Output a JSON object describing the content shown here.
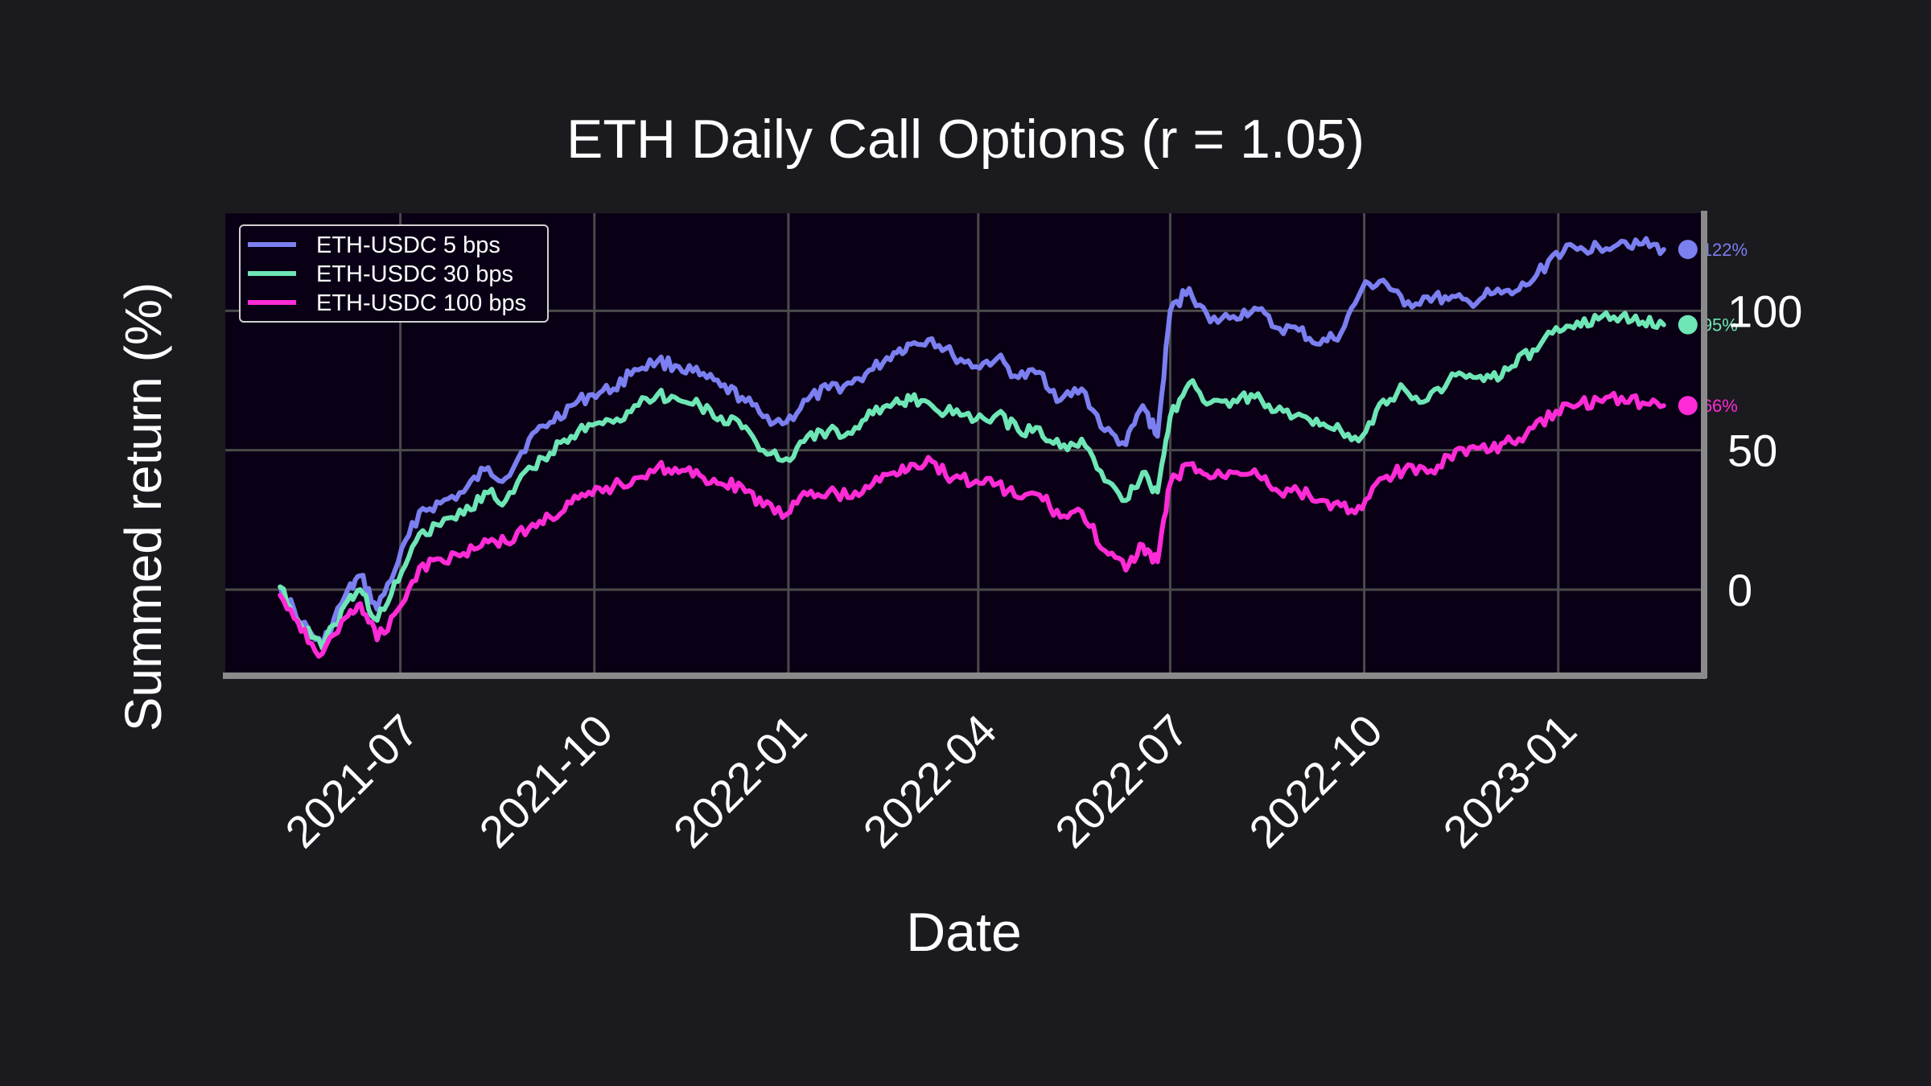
{
  "chart_data": {
    "type": "line",
    "title": "ETH Daily Call Options (r = 1.05)",
    "xlabel": "Date",
    "ylabel": "Summed return (%)",
    "x_tick_labels": [
      "2021-07",
      "2021-10",
      "2022-01",
      "2022-04",
      "2022-07",
      "2022-10",
      "2023-01"
    ],
    "y_ticks": [
      0,
      50,
      100
    ],
    "y_tick_labels": [
      "0",
      "50",
      "100"
    ],
    "y_axis_side": "right",
    "xlim": [
      "2021-04-09",
      "2023-03-10"
    ],
    "ylim": [
      -30,
      135
    ],
    "grid": true,
    "legend_position": "top-left",
    "colors": {
      "background": "#1b1a1f",
      "plot_background": "#0a0015",
      "grid": "#4a4a4a",
      "axis": "#8a8a8a",
      "text": "#ffffff"
    },
    "series": [
      {
        "name": "ETH-USDC 5 bps",
        "color": "#7b7ff0",
        "end_label": "122%",
        "x": [
          "2021-05-05",
          "2021-05-15",
          "2021-05-25",
          "2021-06-05",
          "2021-06-12",
          "2021-06-20",
          "2021-06-30",
          "2021-07-10",
          "2021-07-20",
          "2021-07-31",
          "2021-08-10",
          "2021-08-20",
          "2021-08-31",
          "2021-09-10",
          "2021-09-20",
          "2021-09-30",
          "2021-10-10",
          "2021-10-20",
          "2021-10-31",
          "2021-11-10",
          "2021-11-20",
          "2021-11-30",
          "2021-12-10",
          "2021-12-20",
          "2021-12-31",
          "2022-01-10",
          "2022-01-20",
          "2022-01-31",
          "2022-02-10",
          "2022-02-20",
          "2022-02-28",
          "2022-03-10",
          "2022-03-20",
          "2022-03-31",
          "2022-04-10",
          "2022-04-20",
          "2022-04-30",
          "2022-05-10",
          "2022-05-20",
          "2022-05-31",
          "2022-06-10",
          "2022-06-18",
          "2022-06-25",
          "2022-07-01",
          "2022-07-10",
          "2022-07-20",
          "2022-07-31",
          "2022-08-10",
          "2022-08-20",
          "2022-08-31",
          "2022-09-10",
          "2022-09-20",
          "2022-09-30",
          "2022-10-10",
          "2022-10-20",
          "2022-10-31",
          "2022-11-10",
          "2022-11-20",
          "2022-11-30",
          "2022-12-10",
          "2022-12-20",
          "2022-12-31",
          "2023-01-10",
          "2023-01-20",
          "2023-01-31",
          "2023-02-10",
          "2023-02-20"
        ],
        "y": [
          1,
          -12,
          -20,
          -2,
          5,
          -7,
          10,
          28,
          31,
          35,
          43,
          40,
          54,
          60,
          66,
          70,
          72,
          79,
          82,
          80,
          77,
          73,
          69,
          62,
          60,
          68,
          72,
          74,
          79,
          85,
          88,
          90,
          84,
          80,
          83,
          76,
          78,
          68,
          72,
          57,
          52,
          66,
          55,
          100,
          108,
          96,
          98,
          101,
          94,
          93,
          88,
          92,
          108,
          111,
          102,
          105,
          104,
          103,
          106,
          106,
          111,
          121,
          122,
          123,
          125,
          124,
          122
        ]
      },
      {
        "name": "ETH-USDC 30 bps",
        "color": "#6ee6b6",
        "end_label": "95%",
        "x": [
          "2021-05-05",
          "2021-05-15",
          "2021-05-25",
          "2021-06-05",
          "2021-06-12",
          "2021-06-20",
          "2021-06-30",
          "2021-07-10",
          "2021-07-20",
          "2021-07-31",
          "2021-08-10",
          "2021-08-20",
          "2021-08-31",
          "2021-09-10",
          "2021-09-20",
          "2021-09-30",
          "2021-10-10",
          "2021-10-20",
          "2021-10-31",
          "2021-11-10",
          "2021-11-20",
          "2021-11-30",
          "2021-12-10",
          "2021-12-20",
          "2021-12-31",
          "2022-01-10",
          "2022-01-20",
          "2022-01-31",
          "2022-02-10",
          "2022-02-20",
          "2022-02-28",
          "2022-03-10",
          "2022-03-20",
          "2022-03-31",
          "2022-04-10",
          "2022-04-20",
          "2022-04-30",
          "2022-05-10",
          "2022-05-20",
          "2022-05-31",
          "2022-06-10",
          "2022-06-18",
          "2022-06-25",
          "2022-07-01",
          "2022-07-10",
          "2022-07-20",
          "2022-07-31",
          "2022-08-10",
          "2022-08-20",
          "2022-08-31",
          "2022-09-10",
          "2022-09-20",
          "2022-09-30",
          "2022-10-10",
          "2022-10-20",
          "2022-10-31",
          "2022-11-10",
          "2022-11-20",
          "2022-11-30",
          "2022-12-10",
          "2022-12-20",
          "2022-12-31",
          "2023-01-10",
          "2023-01-20",
          "2023-01-31",
          "2023-02-10",
          "2023-02-20"
        ],
        "y": [
          1,
          -13,
          -21,
          -5,
          0,
          -11,
          3,
          20,
          23,
          27,
          35,
          32,
          44,
          49,
          55,
          59,
          60,
          66,
          70,
          68,
          66,
          62,
          58,
          50,
          47,
          55,
          57,
          56,
          63,
          67,
          68,
          66,
          63,
          61,
          63,
          57,
          58,
          51,
          54,
          39,
          32,
          42,
          35,
          62,
          74,
          67,
          68,
          69,
          64,
          63,
          59,
          57,
          55,
          68,
          72,
          68,
          75,
          77,
          76,
          80,
          86,
          94,
          96,
          97,
          98,
          96,
          95
        ]
      },
      {
        "name": "ETH-USDC 100 bps",
        "color": "#ff2bd6",
        "end_label": "66%",
        "x": [
          "2021-05-05",
          "2021-05-15",
          "2021-05-25",
          "2021-06-05",
          "2021-06-12",
          "2021-06-20",
          "2021-06-30",
          "2021-07-10",
          "2021-07-20",
          "2021-07-31",
          "2021-08-10",
          "2021-08-20",
          "2021-08-31",
          "2021-09-10",
          "2021-09-20",
          "2021-09-30",
          "2021-10-10",
          "2021-10-20",
          "2021-10-31",
          "2021-11-10",
          "2021-11-20",
          "2021-11-30",
          "2021-12-10",
          "2021-12-20",
          "2021-12-31",
          "2022-01-10",
          "2022-01-20",
          "2022-01-31",
          "2022-02-10",
          "2022-02-20",
          "2022-02-28",
          "2022-03-10",
          "2022-03-20",
          "2022-03-31",
          "2022-04-10",
          "2022-04-20",
          "2022-04-30",
          "2022-05-10",
          "2022-05-20",
          "2022-05-31",
          "2022-06-10",
          "2022-06-18",
          "2022-06-25",
          "2022-07-01",
          "2022-07-10",
          "2022-07-20",
          "2022-07-31",
          "2022-08-10",
          "2022-08-20",
          "2022-08-31",
          "2022-09-10",
          "2022-09-20",
          "2022-09-30",
          "2022-10-10",
          "2022-10-20",
          "2022-10-31",
          "2022-11-10",
          "2022-11-20",
          "2022-11-30",
          "2022-12-10",
          "2022-12-20",
          "2022-12-31",
          "2023-01-10",
          "2023-01-20",
          "2023-01-31",
          "2023-02-10",
          "2023-02-20"
        ],
        "y": [
          -2,
          -15,
          -23,
          -10,
          -5,
          -18,
          -7,
          8,
          11,
          13,
          18,
          17,
          22,
          26,
          31,
          34,
          37,
          40,
          44,
          42,
          41,
          38,
          37,
          30,
          27,
          34,
          35,
          33,
          38,
          42,
          45,
          46,
          40,
          39,
          38,
          33,
          34,
          26,
          28,
          14,
          7,
          16,
          10,
          38,
          45,
          40,
          42,
          43,
          36,
          35,
          32,
          30,
          29,
          40,
          43,
          42,
          48,
          51,
          50,
          53,
          58,
          64,
          66,
          68,
          69,
          67,
          66
        ]
      }
    ]
  }
}
